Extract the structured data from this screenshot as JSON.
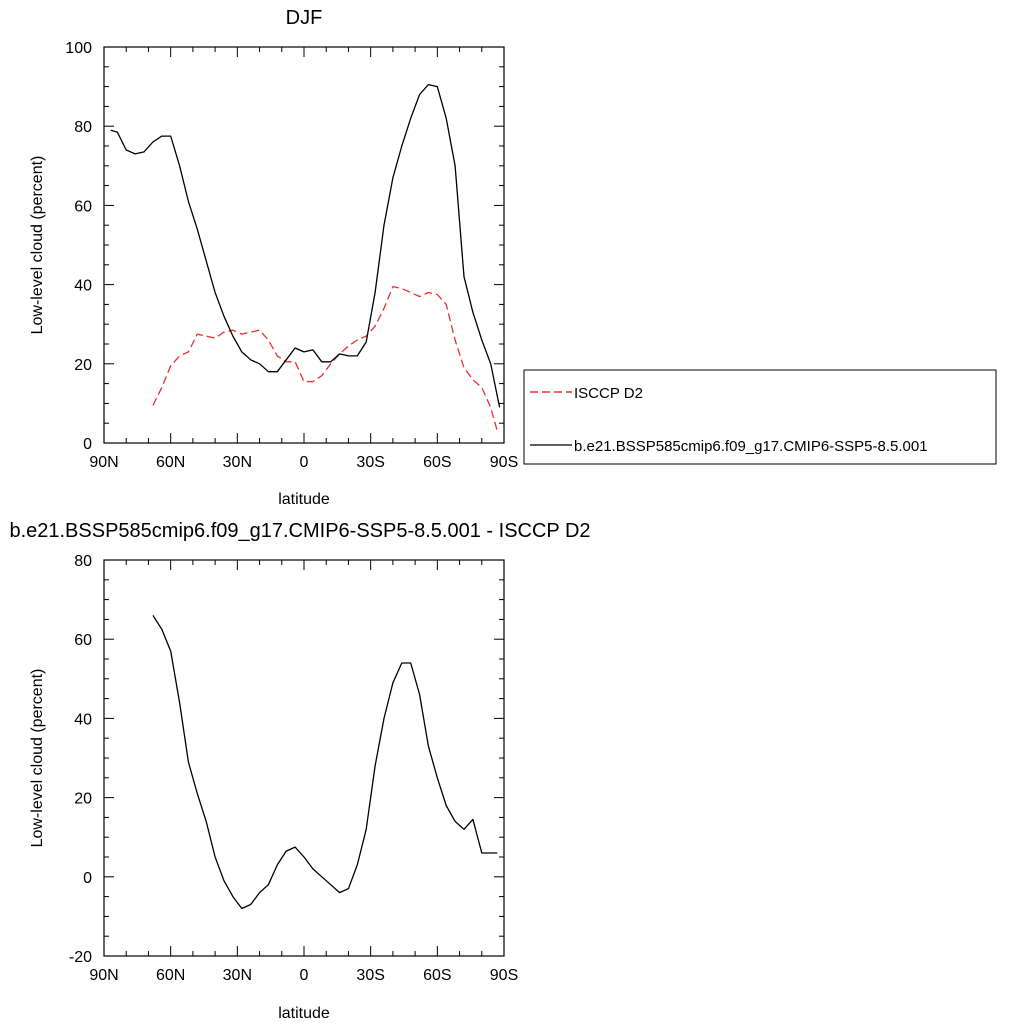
{
  "chart_data": [
    {
      "type": "line",
      "title": "DJF",
      "xlabel": "latitude",
      "ylabel": "Low-level cloud (percent)",
      "xlim": [
        90,
        -90
      ],
      "ylim": [
        0,
        100
      ],
      "x_ticks": [
        90,
        60,
        30,
        0,
        -30,
        -60,
        -90
      ],
      "x_tick_labels": [
        "90N",
        "60N",
        "30N",
        "0",
        "30S",
        "60S",
        "90S"
      ],
      "y_ticks": [
        0,
        20,
        40,
        60,
        80,
        100
      ],
      "y_tick_labels": [
        "0",
        "20",
        "40",
        "60",
        "80",
        "100"
      ],
      "legend_position": "right",
      "series": [
        {
          "name": "ISCCP D2",
          "color": "#e8312a",
          "dash": "dashed",
          "x": [
            68,
            64,
            60,
            56,
            52,
            48,
            44,
            40,
            36,
            32,
            28,
            24,
            20,
            16,
            12,
            8,
            4,
            0,
            -4,
            -8,
            -12,
            -16,
            -20,
            -24,
            -28,
            -32,
            -36,
            -40,
            -44,
            -48,
            -52,
            -56,
            -60,
            -64,
            -68,
            -72,
            -76,
            -80,
            -84,
            -87
          ],
          "y": [
            9.5,
            14,
            19.5,
            22,
            23,
            27.5,
            27,
            26.5,
            28,
            28.5,
            27.5,
            28,
            28.5,
            26,
            22,
            20.5,
            20.5,
            15.5,
            15.5,
            17,
            20,
            22.5,
            24.5,
            26,
            27,
            29.5,
            34,
            39.5,
            39,
            38,
            37,
            38,
            37.5,
            35,
            26,
            19,
            16,
            14,
            9,
            3
          ]
        },
        {
          "name": "b.e21.BSSP585cmip6.f09_g17.CMIP6-SSP5-8.5.001",
          "color": "#000000",
          "dash": "solid",
          "x": [
            87,
            84,
            80,
            76,
            72,
            68,
            64,
            60,
            56,
            52,
            48,
            44,
            40,
            36,
            32,
            28,
            24,
            20,
            16,
            12,
            8,
            4,
            0,
            -4,
            -8,
            -12,
            -16,
            -20,
            -24,
            -28,
            -32,
            -36,
            -40,
            -44,
            -48,
            -52,
            -56,
            -60,
            -64,
            -68,
            -72,
            -76,
            -80,
            -84,
            -88
          ],
          "y": [
            79,
            78.5,
            74,
            73,
            73.5,
            76,
            77.5,
            77.5,
            70,
            61,
            54,
            46,
            38,
            32,
            27,
            23,
            21,
            20,
            18,
            18,
            21,
            24,
            23,
            23.5,
            20.5,
            20.5,
            22.5,
            22,
            22,
            25.5,
            38,
            55,
            67,
            75,
            82,
            88,
            90.5,
            90,
            82,
            70,
            42,
            33,
            26,
            20,
            9
          ]
        }
      ]
    },
    {
      "type": "line",
      "title": "b.e21.BSSP585cmip6.f09_g17.CMIP6-SSP5-8.5.001 - ISCCP D2",
      "xlabel": "latitude",
      "ylabel": "Low-level cloud (percent)",
      "xlim": [
        90,
        -90
      ],
      "ylim": [
        -20,
        80
      ],
      "x_ticks": [
        90,
        60,
        30,
        0,
        -30,
        -60,
        -90
      ],
      "x_tick_labels": [
        "90N",
        "60N",
        "30N",
        "0",
        "30S",
        "60S",
        "90S"
      ],
      "y_ticks": [
        -20,
        0,
        20,
        40,
        60,
        80
      ],
      "y_tick_labels": [
        "-20",
        "0",
        "20",
        "40",
        "60",
        "80"
      ],
      "series": [
        {
          "color": "#000000",
          "dash": "solid",
          "x": [
            68,
            64,
            60,
            56,
            52,
            48,
            44,
            40,
            36,
            32,
            28,
            24,
            20,
            16,
            12,
            8,
            4,
            0,
            -4,
            -8,
            -12,
            -16,
            -20,
            -24,
            -28,
            -32,
            -36,
            -40,
            -44,
            -48,
            -52,
            -56,
            -60,
            -64,
            -68,
            -72,
            -76,
            -80,
            -84,
            -87
          ],
          "y": [
            66,
            62.5,
            57,
            44,
            29,
            21,
            14,
            5,
            -1,
            -5,
            -8,
            -7,
            -4,
            -2,
            3,
            6.5,
            7.5,
            5,
            2,
            0,
            -2,
            -4,
            -3,
            3,
            12,
            28,
            40,
            49,
            54,
            54,
            46,
            33,
            25,
            18,
            14,
            12,
            14.5,
            6,
            6,
            6
          ]
        }
      ]
    }
  ]
}
